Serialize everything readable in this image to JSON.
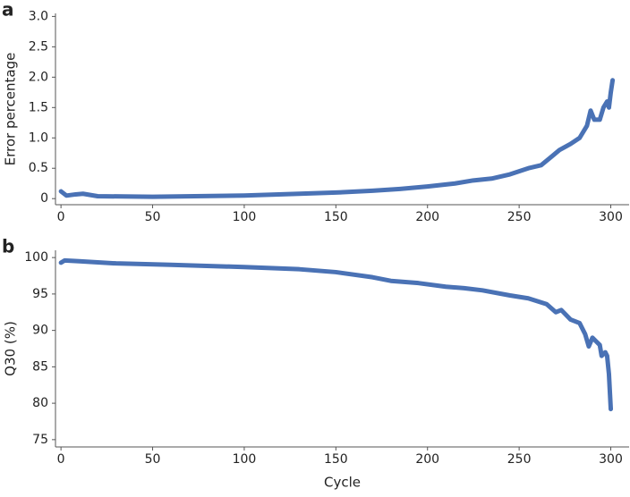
{
  "chart_data": [
    {
      "type": "line",
      "label": "a",
      "ylabel": "Error percentage",
      "x": [
        0,
        3,
        8,
        12,
        20,
        50,
        100,
        130,
        150,
        170,
        185,
        200,
        215,
        225,
        235,
        245,
        255,
        262,
        268,
        272,
        278,
        283,
        287,
        289,
        291,
        294,
        296,
        298,
        299,
        300,
        301
      ],
      "series": [
        {
          "color": "#4a72b5",
          "values": [
            0.12,
            0.05,
            0.07,
            0.08,
            0.04,
            0.03,
            0.05,
            0.08,
            0.1,
            0.13,
            0.16,
            0.2,
            0.25,
            0.3,
            0.33,
            0.4,
            0.5,
            0.55,
            0.7,
            0.8,
            0.9,
            1.0,
            1.2,
            1.45,
            1.3,
            1.3,
            1.5,
            1.6,
            1.5,
            1.75,
            1.95
          ]
        }
      ],
      "xlim": [
        -3,
        310
      ],
      "xticks": [
        0,
        50,
        100,
        150,
        200,
        250,
        300
      ],
      "ylim": [
        -0.1,
        3.05
      ],
      "yticks": [
        0,
        0.5,
        {
          "value": 1,
          "label": "1.0"
        },
        1.5,
        {
          "value": 2,
          "label": "2.0"
        },
        2.5,
        {
          "value": 3,
          "label": "3.0"
        }
      ]
    },
    {
      "type": "line",
      "label": "b",
      "ylabel": "Q30 (%)",
      "xlabel": "Cycle",
      "x": [
        0,
        2,
        10,
        30,
        60,
        100,
        130,
        150,
        170,
        180,
        195,
        210,
        220,
        230,
        245,
        255,
        265,
        270,
        273,
        278,
        283,
        286,
        288,
        290,
        292,
        294,
        295,
        297,
        298,
        299,
        300
      ],
      "series": [
        {
          "color": "#4a72b5",
          "values": [
            99.3,
            99.6,
            99.5,
            99.2,
            99.0,
            98.7,
            98.4,
            98.0,
            97.3,
            96.8,
            96.5,
            96.0,
            95.8,
            95.5,
            94.8,
            94.4,
            93.6,
            92.5,
            92.8,
            91.5,
            91.0,
            89.5,
            87.8,
            89.0,
            88.5,
            88.0,
            86.5,
            87.0,
            86.5,
            84,
            79.2
          ]
        }
      ],
      "xlim": [
        -3,
        310
      ],
      "xticks": [
        0,
        50,
        100,
        150,
        200,
        250,
        300
      ],
      "ylim": [
        74,
        101
      ],
      "yticks": [
        75,
        80,
        85,
        90,
        95,
        100
      ]
    }
  ]
}
